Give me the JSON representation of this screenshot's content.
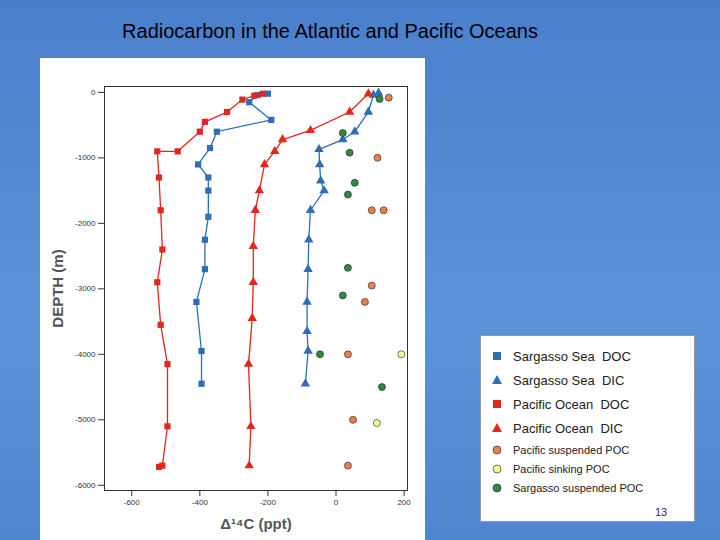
{
  "chart_data": {
    "type": "line",
    "title": "Radiocarbon in the Atlantic and Pacific Oceans",
    "xlabel": "Δ¹⁴C (ppt)",
    "ylabel": "DEPTH (m)",
    "xlim": [
      -680,
      210
    ],
    "ylim": [
      -6080,
      90
    ],
    "xticks": [
      -600,
      -400,
      -200,
      0,
      200
    ],
    "yticks": [
      0,
      -1000,
      -2000,
      -3000,
      -4000,
      -5000,
      -6000
    ],
    "grid": false,
    "legend": "lower right",
    "series": [
      {
        "name": "Sargasso Sea  DOC",
        "type": "line",
        "color": "#2f6db5",
        "marker": "square",
        "line_style": "solid",
        "x": [
          -200,
          -230,
          -255,
          -190,
          -350,
          -370,
          -405,
          -375,
          -375,
          -375,
          -385,
          -385,
          -410,
          -395,
          -395
        ],
        "values": [
          -20,
          -40,
          -150,
          -420,
          -600,
          -850,
          -1100,
          -1300,
          -1500,
          -1900,
          -2250,
          -2700,
          -3200,
          -3950,
          -4450
        ]
      },
      {
        "name": "Sargasso Sea  DIC",
        "type": "line",
        "color": "#2f6db5",
        "marker": "triangle",
        "line_style": "solid",
        "x": [
          125,
          110,
          95,
          55,
          20,
          -50,
          -48,
          -45,
          -35,
          -75,
          -80,
          -82,
          -85,
          -85,
          -82,
          -90
        ],
        "values": [
          -10,
          -40,
          -300,
          -600,
          -720,
          -870,
          -1100,
          -1350,
          -1500,
          -1800,
          -2250,
          -2700,
          -3200,
          -3650,
          -3950,
          -4450
        ]
      },
      {
        "name": "Pacific Ocean  DOC",
        "type": "line",
        "color": "#e0281e",
        "marker": "square",
        "line_style": "solid",
        "x": [
          -215,
          -240,
          -275,
          -320,
          -385,
          -400,
          -465,
          -525,
          -520,
          -515,
          -510,
          -525,
          -515,
          -495,
          -495,
          -510,
          -520
        ],
        "values": [
          -20,
          -50,
          -110,
          -300,
          -450,
          -600,
          -900,
          -900,
          -1300,
          -1800,
          -2400,
          -2900,
          -3550,
          -4150,
          -5100,
          -5700,
          -5720
        ]
      },
      {
        "name": "Pacific Ocean  DIC",
        "type": "line",
        "color": "#e0281e",
        "marker": "triangle",
        "line_style": "solid",
        "x": [
          95,
          40,
          -75,
          -157,
          -180,
          -210,
          -225,
          -237,
          -243,
          -243,
          -246,
          -257,
          -250,
          -255
        ],
        "values": [
          -20,
          -300,
          -580,
          -720,
          -900,
          -1100,
          -1500,
          -1800,
          -2350,
          -2900,
          -3450,
          -4150,
          -5100,
          -5700
        ]
      },
      {
        "name": "Pacific suspended POC",
        "type": "scatter",
        "color": "#e8804a",
        "marker": "circle",
        "x": [
          155,
          122,
          105,
          140,
          105,
          85,
          35,
          50,
          35
        ],
        "values": [
          -80,
          -1000,
          -1800,
          -1800,
          -2950,
          -3200,
          -4000,
          -5000,
          -5700
        ]
      },
      {
        "name": "Pacific sinking POC",
        "type": "scatter",
        "color": "#ffff99",
        "marker": "circle",
        "x": [
          192,
          120
        ],
        "values": [
          -4000,
          -5050
        ]
      },
      {
        "name": "Sargasso suspended POC",
        "type": "scatter",
        "color": "#2e8b3c",
        "marker": "circle",
        "x": [
          128,
          20,
          40,
          55,
          35,
          35,
          20,
          -47,
          135
        ],
        "values": [
          -100,
          -620,
          -920,
          -1380,
          -1560,
          -2680,
          -3100,
          -4000,
          -4500
        ]
      }
    ]
  },
  "page_number": 13
}
